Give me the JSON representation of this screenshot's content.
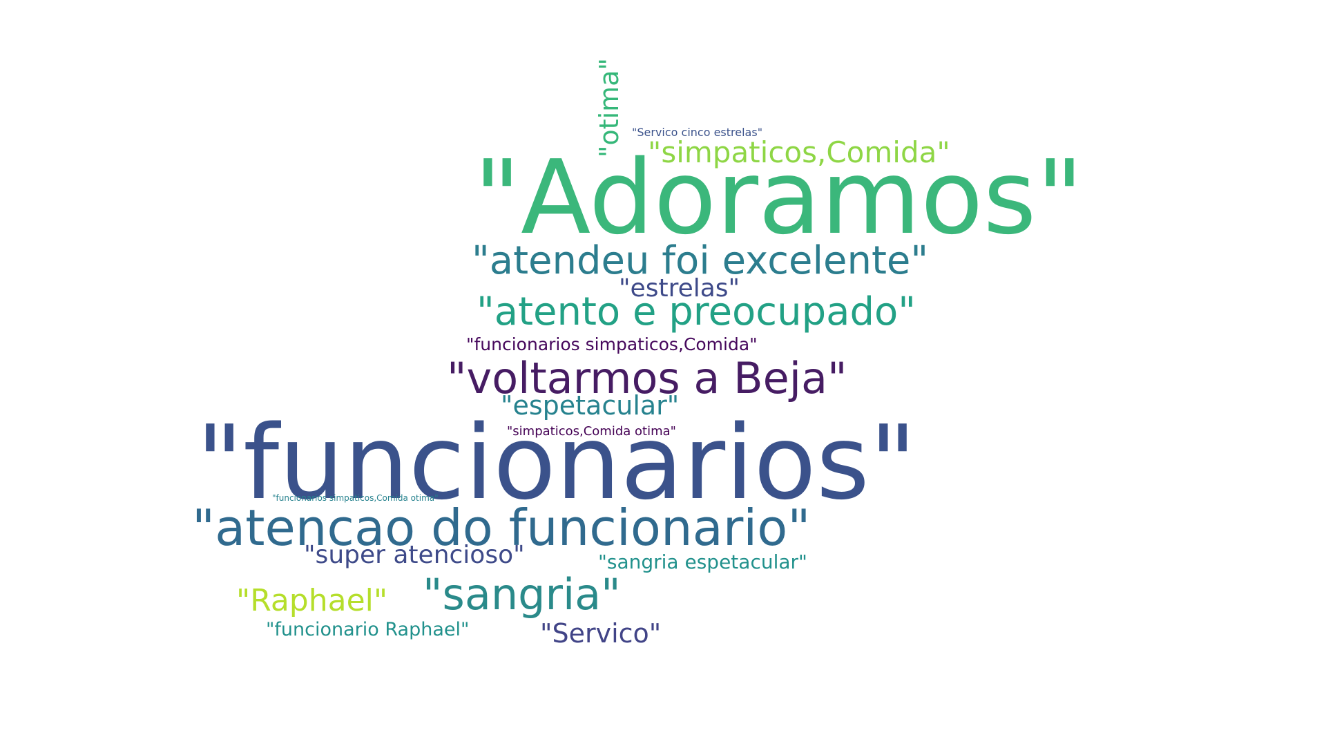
{
  "words": [
    {
      "text": "\"Adoramos\"",
      "color": "#3bb77b"
    },
    {
      "text": "\"funcionarios\"",
      "color": "#3b528b"
    },
    {
      "text": "\"atendeu foi excelente\"",
      "color": "#2c7d8e"
    },
    {
      "text": "\"atento e preocupado\"",
      "color": "#22a185"
    },
    {
      "text": "\"voltarmos a Beja\"",
      "color": "#461c63"
    },
    {
      "text": "\"atencao do funcionario\"",
      "color": "#306a8e"
    },
    {
      "text": "\"sangria\"",
      "color": "#2a8a8a"
    },
    {
      "text": "\"estrelas\"",
      "color": "#3e4a89"
    },
    {
      "text": "\"simpaticos,Comida\"",
      "color": "#8ed645"
    },
    {
      "text": "\"Servico cinco estrelas\"",
      "color": "#3b528b"
    },
    {
      "text": "\"funcionarios simpaticos,Comida\"",
      "color": "#46085c"
    },
    {
      "text": "\"espetacular\"",
      "color": "#26828e"
    },
    {
      "text": "\"simpaticos,Comida otima\"",
      "color": "#440154"
    },
    {
      "text": "\"funcionarios simpaticos,Comida otima\"",
      "color": "#26828e"
    },
    {
      "text": "\"super atencioso\"",
      "color": "#3e4a89"
    },
    {
      "text": "\"sangria espetacular\"",
      "color": "#21918c"
    },
    {
      "text": "\"Raphael\"",
      "color": "#b5de2b"
    },
    {
      "text": "\"funcionario Raphael\"",
      "color": "#21918c"
    },
    {
      "text": "\"Servico\"",
      "color": "#414487"
    },
    {
      "text": "\"otima\"",
      "color": "#35b779"
    }
  ]
}
